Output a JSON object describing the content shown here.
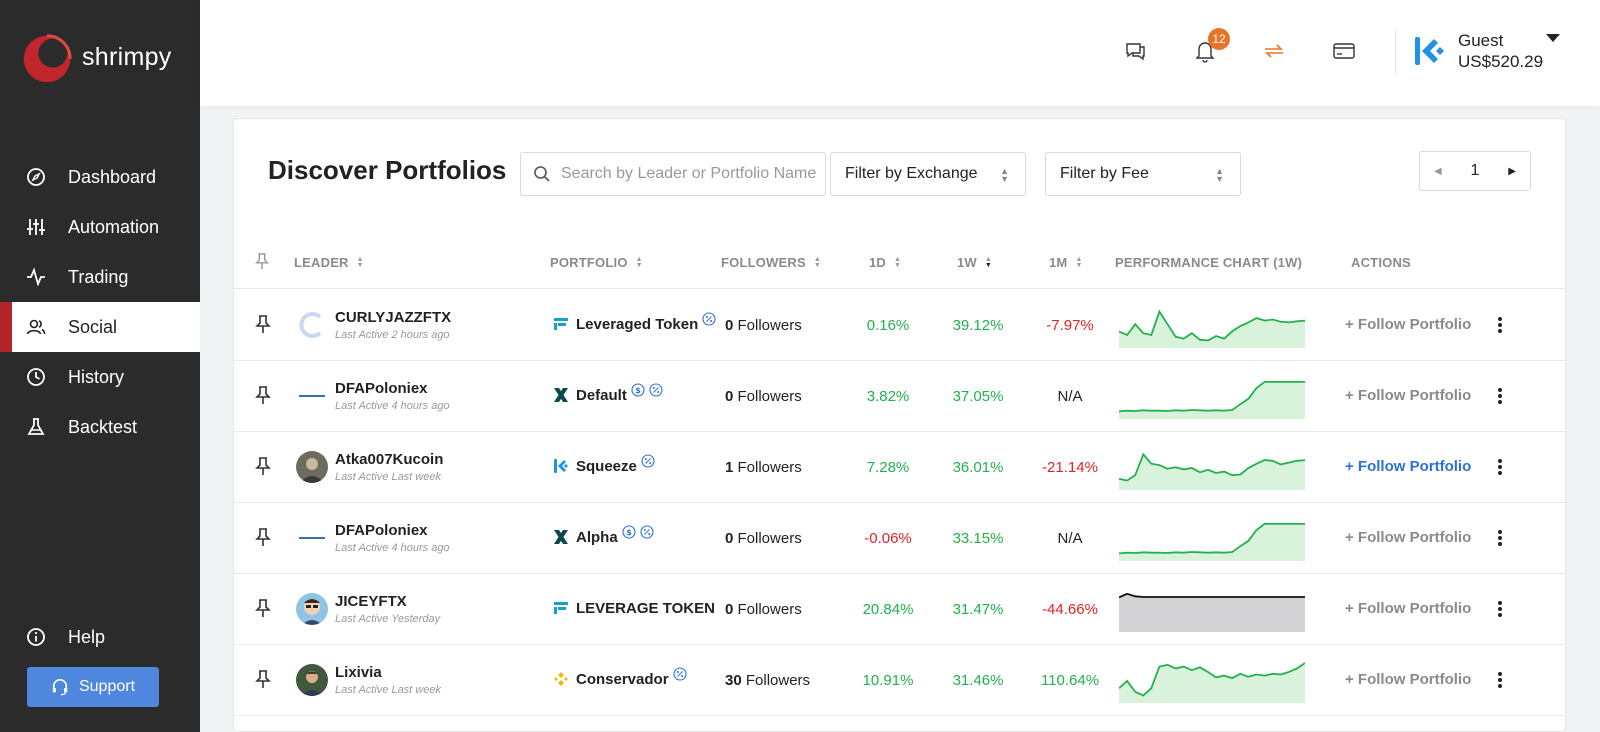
{
  "app": {
    "name": "shrimpy"
  },
  "sidebar": {
    "items": [
      {
        "label": "Dashboard",
        "icon": "compass-icon"
      },
      {
        "label": "Automation",
        "icon": "sliders-icon"
      },
      {
        "label": "Trading",
        "icon": "activity-icon"
      },
      {
        "label": "Social",
        "icon": "users-icon",
        "active": true
      },
      {
        "label": "History",
        "icon": "clock-icon"
      },
      {
        "label": "Backtest",
        "icon": "flask-icon"
      }
    ],
    "help_label": "Help",
    "support_label": "Support"
  },
  "header": {
    "notification_count": "12",
    "account_name": "Guest",
    "account_balance": "US$520.29"
  },
  "main": {
    "title": "Discover Portfolios",
    "search_placeholder": "Search by Leader or Portfolio Name",
    "filter_exchange": "Filter by Exchange",
    "filter_fee": "Filter by Fee",
    "page": "1"
  },
  "columns": {
    "leader": "LEADER",
    "portfolio": "PORTFOLIO",
    "followers": "FOLLOWERS",
    "d1": "1D",
    "w1": "1W",
    "m1": "1M",
    "chart": "PERFORMANCE CHART (1W)",
    "actions": "ACTIONS"
  },
  "rows": [
    {
      "leader": "CURLYJAZZFTX",
      "last_active": "Last Active 2 hours ago",
      "portfolio": "Leveraged Token",
      "exchange_icon": "ftx-icon",
      "fee_tags": [
        "percent-badge-icon"
      ],
      "followers_count": "0",
      "followers_label": "Followers",
      "d1": "0.16%",
      "w1": "39.12%",
      "m1": "-7.97%",
      "d1_sign": "pos",
      "w1_sign": "pos",
      "m1_sign": "neg",
      "chart_color": "green",
      "chart": [
        0.35,
        0.25,
        0.55,
        0.3,
        0.25,
        0.9,
        0.55,
        0.2,
        0.15,
        0.3,
        0.12,
        0.1,
        0.22,
        0.15,
        0.35,
        0.5,
        0.6,
        0.72,
        0.65,
        0.68,
        0.62,
        0.6,
        0.63,
        0.65
      ],
      "follow_label": "+ Follow Portfolio",
      "follow_active": false
    },
    {
      "leader": "DFAPoloniex",
      "last_active": "Last Active 4 hours ago",
      "portfolio": "Default",
      "exchange_icon": "poloniex-icon",
      "fee_tags": [
        "dollar-badge-icon",
        "percent-badge-icon"
      ],
      "followers_count": "0",
      "followers_label": "Followers",
      "d1": "3.82%",
      "w1": "37.05%",
      "m1": "N/A",
      "d1_sign": "pos",
      "w1_sign": "pos",
      "m1_sign": "na",
      "chart_color": "green",
      "chart": [
        0.1,
        0.12,
        0.11,
        0.13,
        0.12,
        0.12,
        0.11,
        0.13,
        0.12,
        0.14,
        0.13,
        0.12,
        0.13,
        0.12,
        0.14,
        0.3,
        0.45,
        0.75,
        0.92,
        0.92,
        0.92,
        0.92,
        0.92,
        0.92
      ],
      "follow_label": "+ Follow Portfolio",
      "follow_active": false
    },
    {
      "leader": "Atka007Kucoin",
      "last_active": "Last Active Last week",
      "portfolio": "Squeeze",
      "exchange_icon": "kucoin-icon",
      "fee_tags": [
        "percent-badge-icon"
      ],
      "followers_count": "1",
      "followers_label": "Followers",
      "d1": "7.28%",
      "w1": "36.01%",
      "m1": "-21.14%",
      "d1_sign": "pos",
      "w1_sign": "pos",
      "m1_sign": "neg",
      "chart_color": "green",
      "chart": [
        0.2,
        0.15,
        0.3,
        0.88,
        0.62,
        0.58,
        0.48,
        0.52,
        0.46,
        0.5,
        0.38,
        0.45,
        0.36,
        0.4,
        0.3,
        0.32,
        0.5,
        0.62,
        0.72,
        0.7,
        0.6,
        0.65,
        0.7,
        0.72
      ],
      "follow_label": "+ Follow Portfolio",
      "follow_active": true
    },
    {
      "leader": "DFAPoloniex",
      "last_active": "Last Active 4 hours ago",
      "portfolio": "Alpha",
      "exchange_icon": "poloniex-icon",
      "fee_tags": [
        "dollar-badge-icon",
        "percent-badge-icon"
      ],
      "followers_count": "0",
      "followers_label": "Followers",
      "d1": "-0.06%",
      "w1": "33.15%",
      "m1": "N/A",
      "d1_sign": "neg",
      "w1_sign": "pos",
      "m1_sign": "na",
      "chart_color": "green",
      "chart": [
        0.1,
        0.12,
        0.11,
        0.13,
        0.12,
        0.12,
        0.11,
        0.13,
        0.12,
        0.14,
        0.13,
        0.12,
        0.13,
        0.12,
        0.14,
        0.3,
        0.45,
        0.75,
        0.92,
        0.92,
        0.92,
        0.92,
        0.92,
        0.92
      ],
      "follow_label": "+ Follow Portfolio",
      "follow_active": false
    },
    {
      "leader": "JICEYFTX",
      "last_active": "Last Active Yesterday",
      "portfolio": "LEVERAGE TOKEN",
      "exchange_icon": "ftx-icon",
      "fee_tags": [],
      "followers_count": "0",
      "followers_label": "Followers",
      "d1": "20.84%",
      "w1": "31.47%",
      "m1": "-44.66%",
      "d1_sign": "pos",
      "w1_sign": "pos",
      "m1_sign": "neg",
      "chart_color": "gray",
      "chart": [
        0.85,
        0.95,
        0.88,
        0.86,
        0.86,
        0.86,
        0.86,
        0.86,
        0.86,
        0.86,
        0.86,
        0.86,
        0.86,
        0.86,
        0.86,
        0.86,
        0.86,
        0.86,
        0.86,
        0.86,
        0.86,
        0.86,
        0.86,
        0.86
      ],
      "follow_label": "+ Follow Portfolio",
      "follow_active": false
    },
    {
      "leader": "Lixivia",
      "last_active": "Last Active Last week",
      "portfolio": "Conservador",
      "exchange_icon": "binance-icon",
      "fee_tags": [
        "percent-badge-icon"
      ],
      "followers_count": "30",
      "followers_label": "Followers",
      "d1": "10.91%",
      "w1": "31.46%",
      "m1": "110.64%",
      "d1_sign": "pos",
      "w1_sign": "pos",
      "m1_sign": "pos",
      "chart_color": "green",
      "chart": [
        0.3,
        0.5,
        0.2,
        0.1,
        0.3,
        0.9,
        0.95,
        0.85,
        0.9,
        0.8,
        0.88,
        0.75,
        0.6,
        0.65,
        0.58,
        0.7,
        0.62,
        0.68,
        0.65,
        0.7,
        0.68,
        0.75,
        0.85,
        1.0
      ],
      "follow_label": "+ Follow Portfolio",
      "follow_active": false
    }
  ],
  "colors": {
    "positive": "#22b14c",
    "negative": "#e02424",
    "accent": "#4f86de",
    "brand_red": "#b0262a"
  }
}
